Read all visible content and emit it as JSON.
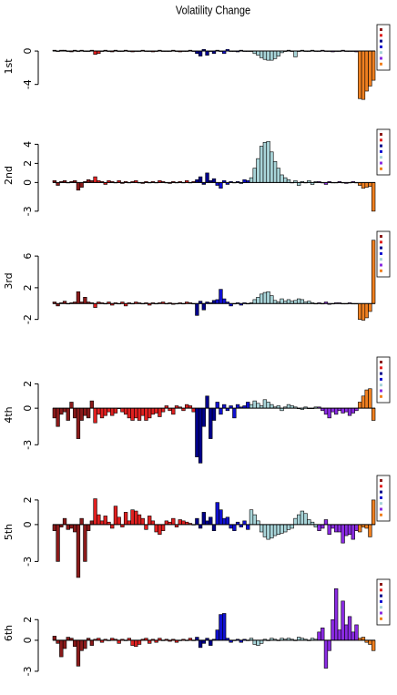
{
  "title": "Volatility Change",
  "chart_data": [
    {
      "type": "bar",
      "ylabel": "1st",
      "ylim": [
        -6,
        2.3
      ],
      "yticks": [
        -4,
        0
      ],
      "series": [
        {
          "color": "#8b1a1a",
          "values": [
            0.1,
            0,
            0.1,
            0.1,
            0,
            -0.1,
            0.1,
            0,
            0.1,
            0,
            0,
            0.1
          ]
        },
        {
          "color": "#e02020",
          "values": [
            -0.4,
            -0.3,
            0,
            0.1,
            0,
            -0.1,
            0.1,
            0,
            0,
            0.1,
            0,
            -0.1,
            0,
            0,
            0.1,
            0,
            0,
            -0.1,
            0,
            0.1,
            0,
            0,
            0,
            0.1,
            0,
            -0.1,
            0,
            0,
            0.1,
            0
          ]
        },
        {
          "color": "#00008b",
          "values": [
            -0.3,
            -0.6,
            0.2,
            -0.5,
            0,
            -0.3
          ]
        },
        {
          "color": "#1010d0",
          "values": [
            0.1,
            0,
            -0.3,
            0.2,
            0,
            0,
            -0.1,
            0.1,
            0,
            0
          ]
        },
        {
          "color": "#a8d4d8",
          "values": [
            0,
            -0.3,
            -0.5,
            -0.8,
            -1,
            -1.1,
            -1.1,
            -0.9,
            -0.6,
            -0.2,
            0,
            0.1,
            0,
            -0.7,
            0,
            0.1,
            0,
            0,
            0.1,
            0
          ]
        },
        {
          "color": "#8a2be2",
          "values": [
            0,
            0.1,
            0,
            0,
            -0.1,
            0,
            0,
            0.1,
            0,
            0,
            0,
            -0.1
          ]
        },
        {
          "color": "#f08020",
          "values": [
            -5.7,
            -5.8,
            -4.8,
            -4.2,
            -3.5
          ]
        }
      ]
    },
    {
      "type": "bar",
      "ylabel": "2nd",
      "ylim": [
        -3.3,
        4.8
      ],
      "yticks": [
        -3,
        0,
        2,
        4
      ],
      "series": [
        {
          "color": "#8b1a1a",
          "values": [
            0.2,
            -0.3,
            0.1,
            0.2,
            0,
            0.1,
            0.2,
            -0.8,
            -0.5,
            0.1,
            0.3,
            0.2
          ]
        },
        {
          "color": "#e02020",
          "values": [
            0.6,
            0.2,
            0.1,
            -0.2,
            0.2,
            0.1,
            0,
            0.2,
            -0.1,
            0.1,
            0,
            0.1,
            0.2,
            0,
            -0.1,
            0.1,
            0,
            0.1,
            0,
            0.2,
            0.1,
            0,
            -0.1,
            0.1,
            0,
            0.1,
            0,
            0.2,
            0,
            0.1
          ]
        },
        {
          "color": "#00008b",
          "values": [
            0.3,
            0.6,
            -0.2,
            1,
            0.2,
            0.4
          ]
        },
        {
          "color": "#1010d0",
          "values": [
            -0.3,
            -0.6,
            0.2,
            -0.2,
            0.1,
            0,
            0.1,
            -0.1,
            0.3,
            0.2
          ]
        },
        {
          "color": "#a8d4d8",
          "values": [
            0.5,
            1.5,
            2.5,
            3.8,
            4.2,
            4.3,
            3.2,
            2.2,
            1.5,
            0.8,
            0.5,
            0.3,
            0,
            0.2,
            -0.3,
            0.1,
            0,
            0.2,
            -0.2,
            0.1
          ]
        },
        {
          "color": "#8a2be2",
          "values": [
            0.1,
            0,
            -0.2,
            0.1,
            0,
            0,
            0.1,
            0,
            -0.1,
            0,
            0.1,
            0
          ]
        },
        {
          "color": "#f08020",
          "values": [
            -0.3,
            -0.6,
            -0.5,
            -0.4,
            -3
          ]
        }
      ]
    },
    {
      "type": "bar",
      "ylabel": "3rd",
      "ylim": [
        -2.5,
        8.2
      ],
      "yticks": [
        -2,
        2,
        6
      ],
      "series": [
        {
          "color": "#8b1a1a",
          "values": [
            0.2,
            -0.3,
            0.1,
            0.3,
            0,
            0.1,
            0.2,
            1.5,
            0.2,
            0.8,
            0.2,
            0.1
          ]
        },
        {
          "color": "#e02020",
          "values": [
            -0.5,
            0.2,
            0.1,
            0,
            0.2,
            -0.2,
            0.1,
            0,
            0.2,
            -0.3,
            0.1,
            0,
            0.2,
            0.1,
            0,
            0.1,
            -0.2,
            0.1,
            0,
            0.1,
            0.2,
            0,
            0.1,
            -0.1,
            0,
            0.1,
            0,
            0.2,
            0.1,
            0
          ]
        },
        {
          "color": "#00008b",
          "values": [
            -1.5,
            0.3,
            -0.8,
            0.2,
            0.1,
            0.4
          ]
        },
        {
          "color": "#1010d0",
          "values": [
            0.5,
            1.8,
            0.6,
            0.2,
            -0.3,
            0,
            0.1,
            -0.2,
            0.1,
            0
          ]
        },
        {
          "color": "#a8d4d8",
          "values": [
            0.1,
            0.5,
            0.8,
            1.2,
            1.4,
            1.5,
            1,
            0.4,
            0.2,
            0.6,
            0.3,
            0.5,
            0.3,
            0.4,
            0.6,
            0.5,
            0.2,
            0.3,
            0.1,
            0
          ]
        },
        {
          "color": "#8a2be2",
          "values": [
            0.1,
            0,
            0.2,
            -0.1,
            0,
            0.1,
            0.1,
            0,
            0,
            0.1,
            0,
            0
          ]
        },
        {
          "color": "#f08020",
          "values": [
            -2,
            -2.1,
            -1.8,
            -1,
            8
          ]
        }
      ]
    },
    {
      "type": "bar",
      "ylabel": "4th",
      "ylim": [
        -4.7,
        3.6
      ],
      "yticks": [
        -3,
        0,
        2
      ],
      "series": [
        {
          "color": "#8b1a1a",
          "values": [
            -0.8,
            -1.5,
            -0.5,
            -0.3,
            -1,
            0.5,
            -0.8,
            -2.5,
            -1,
            -0.6,
            -0.8,
            0.6
          ]
        },
        {
          "color": "#e02020",
          "values": [
            -1.2,
            -0.5,
            -0.8,
            -0.6,
            -0.3,
            -0.6,
            -0.4,
            0,
            -0.3,
            -0.5,
            -0.8,
            -1,
            -0.8,
            -1,
            -0.6,
            -1,
            -0.8,
            -0.5,
            -0.4,
            -0.7,
            -0.3,
            0.2,
            -0.2,
            -0.5,
            0.2,
            0.1,
            -0.2,
            0.3,
            0.2,
            -0.3
          ]
        },
        {
          "color": "#00008b",
          "values": [
            -4,
            -4.5,
            -1.5,
            1,
            -2.5,
            -1
          ]
        },
        {
          "color": "#1010d0",
          "values": [
            0.5,
            -0.5,
            0.3,
            -0.2,
            0.2,
            -0.8,
            0.3,
            0.1,
            0.2,
            0.5
          ]
        },
        {
          "color": "#a8d4d8",
          "values": [
            0.3,
            0.6,
            0.4,
            0.2,
            0.7,
            0.5,
            0.3,
            0.1,
            0.2,
            -0.2,
            0.1,
            0.3,
            0.2,
            0.1,
            0,
            -0.1,
            0.1,
            0,
            0,
            0.1
          ]
        },
        {
          "color": "#8a2be2",
          "values": [
            0.1,
            -0.2,
            -0.5,
            -0.8,
            -0.3,
            -0.5,
            -0.2,
            -0.4,
            -0.3,
            -0.6,
            -0.4,
            -0.2
          ]
        },
        {
          "color": "#f08020",
          "values": [
            0.5,
            1,
            1.5,
            1.6,
            -1
          ]
        }
      ]
    },
    {
      "type": "bar",
      "ylabel": "5th",
      "ylim": [
        -4.6,
        3.4
      ],
      "yticks": [
        -3,
        0,
        2
      ],
      "series": [
        {
          "color": "#8b1a1a",
          "values": [
            -0.5,
            -3,
            -0.2,
            0.5,
            -0.4,
            -0.3,
            -0.6,
            -4.3,
            0.5,
            -3,
            -0.5,
            0.3
          ]
        },
        {
          "color": "#e02020",
          "values": [
            2.1,
            0.8,
            0.3,
            0.7,
            0.2,
            -0.3,
            1.5,
            0.6,
            -0.2,
            1,
            0.3,
            1.2,
            1.1,
            0.8,
            0.5,
            -0.4,
            0.7,
            0.3,
            -0.6,
            -0.8,
            -0.5,
            0.3,
            0.2,
            0.5,
            -0.2,
            0.4,
            0.3,
            0.2,
            0.1,
            0
          ]
        },
        {
          "color": "#00008b",
          "values": [
            0.5,
            -0.3,
            1,
            0.3,
            0.6,
            -0.5
          ]
        },
        {
          "color": "#1010d0",
          "values": [
            1.8,
            1.2,
            0.5,
            0.6,
            -0.3,
            -0.5,
            0.2,
            -0.2,
            0.3,
            -0.4
          ]
        },
        {
          "color": "#a8d4d8",
          "values": [
            1.2,
            0.8,
            0.3,
            -0.6,
            -1,
            -1.2,
            -1.1,
            -0.9,
            -0.8,
            -0.7,
            -0.6,
            -0.4,
            -0.3,
            0.5,
            0.8,
            1.1,
            0.9,
            0.4,
            0.2,
            -0.2
          ]
        },
        {
          "color": "#8a2be2",
          "values": [
            -0.5,
            -0.3,
            0.4,
            -0.8,
            -0.3,
            -0.6,
            -0.6,
            -1.5,
            -0.9,
            -0.8,
            -1.2,
            -0.5
          ]
        },
        {
          "color": "#f08020",
          "values": [
            -0.6,
            -0.2,
            -0.3,
            -1,
            2
          ]
        }
      ]
    },
    {
      "type": "bar",
      "ylabel": "6th",
      "ylim": [
        -3.8,
        5.2
      ],
      "yticks": [
        -3,
        0,
        2
      ],
      "series": [
        {
          "color": "#8b1a1a",
          "values": [
            0.4,
            -0.3,
            -1.6,
            -0.8,
            0.3,
            0.2,
            -0.6,
            -2.5,
            -1,
            -0.8,
            0.2,
            -0.5
          ]
        },
        {
          "color": "#e02020",
          "values": [
            0.1,
            0.2,
            -0.2,
            0.1,
            0,
            0.2,
            0.1,
            -0.3,
            0.1,
            0,
            0.2,
            -0.5,
            -0.6,
            -0.4,
            0.1,
            0.2,
            -0.3,
            0.1,
            -0.2,
            0.2,
            0,
            0.1,
            -0.1,
            0.1,
            -0.2,
            0,
            0.1,
            0,
            0.2,
            0
          ]
        },
        {
          "color": "#00008b",
          "values": [
            0.3,
            -0.7,
            -0.3,
            0.2,
            -0.5,
            0.1
          ]
        },
        {
          "color": "#1010d0",
          "values": [
            1,
            2.5,
            2.6,
            0.2,
            -0.2,
            0,
            0.1,
            -0.2,
            0.1,
            0
          ]
        },
        {
          "color": "#a8d4d8",
          "values": [
            0.2,
            -0.4,
            -0.5,
            -0.3,
            0.1,
            0,
            0.2,
            0.1,
            0,
            0.2,
            0.1,
            0.2,
            0.1,
            0,
            0.3,
            0.2,
            0.1,
            0,
            0.2,
            0.1
          ]
        },
        {
          "color": "#8a2be2",
          "values": [
            0.8,
            1.2,
            -2.7,
            -1,
            2,
            5,
            1,
            3.8,
            1.5,
            2.3,
            0.8,
            1.5
          ]
        },
        {
          "color": "#f08020",
          "values": [
            0.2,
            0.3,
            -0.2,
            -0.4,
            -1
          ]
        }
      ]
    }
  ]
}
